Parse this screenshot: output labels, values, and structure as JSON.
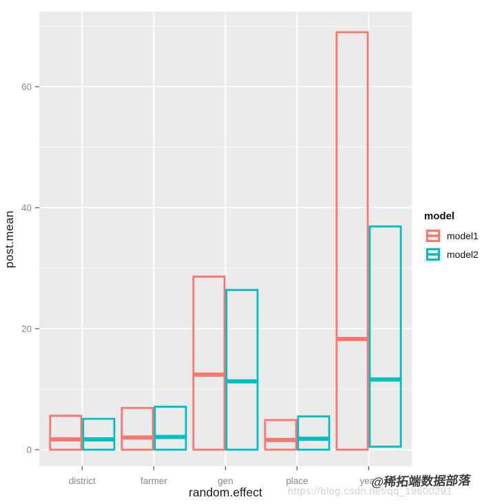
{
  "figure": {
    "background": "#ffffff"
  },
  "chart_data": {
    "type": "crossbar",
    "title": "",
    "xlabel": "random.effect",
    "ylabel": "post.mean",
    "categories": [
      "district",
      "farmer",
      "gen",
      "place",
      "year"
    ],
    "y_major_ticks": [
      0,
      20,
      40,
      60
    ],
    "y_minor_ticks": [
      10,
      30,
      50,
      70
    ],
    "ylim": [
      -2.73,
      72.4
    ],
    "grid": true,
    "panel_bg": "#EBEBEB",
    "grid_major_color": "#FFFFFF",
    "grid_minor_color": "rgba(255,255,255,0.55)",
    "tick_color": "#666666",
    "tick_label_color": "#8A8A8A",
    "legend": {
      "title": "model",
      "position": "right"
    },
    "series": [
      {
        "name": "model1",
        "color": "#F8766D",
        "boxes": [
          {
            "category": "district",
            "lower": 0,
            "middle": 1.7,
            "upper": 5.6
          },
          {
            "category": "farmer",
            "lower": 0,
            "middle": 2.0,
            "upper": 6.9
          },
          {
            "category": "gen",
            "lower": 0,
            "middle": 12.4,
            "upper": 28.6
          },
          {
            "category": "place",
            "lower": 0,
            "middle": 1.6,
            "upper": 4.9
          },
          {
            "category": "year",
            "lower": 0,
            "middle": 18.3,
            "upper": 69.0
          }
        ]
      },
      {
        "name": "model2",
        "color": "#00BFC4",
        "boxes": [
          {
            "category": "district",
            "lower": 0,
            "middle": 1.7,
            "upper": 5.1
          },
          {
            "category": "farmer",
            "lower": 0,
            "middle": 2.1,
            "upper": 7.1
          },
          {
            "category": "gen",
            "lower": 0,
            "middle": 11.3,
            "upper": 26.4
          },
          {
            "category": "place",
            "lower": 0,
            "middle": 1.8,
            "upper": 5.5
          },
          {
            "category": "year",
            "lower": 0.5,
            "middle": 11.6,
            "upper": 36.9
          }
        ]
      }
    ]
  },
  "watermarks": {
    "dark_text": "@稀拓端数据部落",
    "url_text": "https://blog.csdn.net/qq_19600291"
  }
}
